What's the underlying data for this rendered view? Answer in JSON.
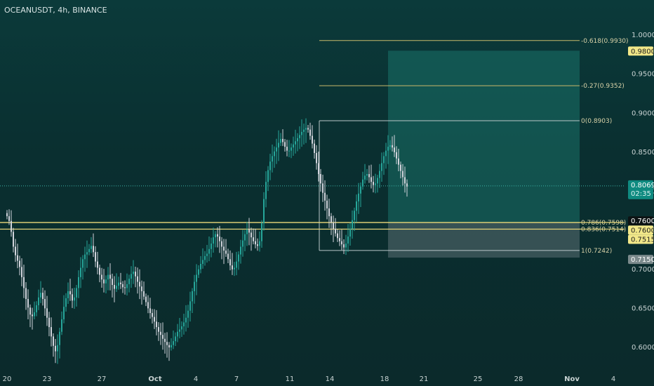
{
  "header": {
    "title": "OCEANUSDT, 4h, BINANCE"
  },
  "colors": {
    "bg_top": "#0b3a3a",
    "bull": "#26a69a",
    "bear": "#d1d4dc",
    "fib": "#c8b86a",
    "target_zone": "#1f8f82",
    "stop_zone": "#6d7f82"
  },
  "chart_data": {
    "type": "candlestick",
    "symbol": "OCEANUSDT",
    "interval": "4h",
    "exchange": "BINANCE",
    "x_tick_labels": [
      "20",
      "23",
      "27",
      "Oct",
      "4",
      "7",
      "11",
      "14",
      "18",
      "21",
      "25",
      "28",
      "Nov",
      "4"
    ],
    "y_tick_labels": [
      "1.0000",
      "0.9500",
      "0.9000",
      "0.8500",
      "0.8000",
      "0.7500",
      "0.7000",
      "0.6500",
      "0.6000"
    ],
    "ylim": [
      0.58,
      1.02
    ],
    "last_price": {
      "value": "0.8069",
      "countdown": "02:35"
    },
    "price_tags": [
      {
        "value": "0.9800",
        "style": "yellow"
      },
      {
        "value": "0.7600",
        "style": "dark"
      },
      {
        "value": "0.7600",
        "style": "yellow"
      },
      {
        "value": "0.7515",
        "style": "yellow"
      },
      {
        "value": "0.7150",
        "style": "gray"
      }
    ],
    "fib_levels": [
      {
        "label": "-0.618(0.9930)",
        "value": 0.993
      },
      {
        "label": "-0.27(0.9352)",
        "value": 0.9352
      },
      {
        "label": "0(0.8903)",
        "value": 0.8903
      },
      {
        "label": "0.786(0.7598)",
        "value": 0.7598
      },
      {
        "label": "0.836(0.7514)",
        "value": 0.7514
      },
      {
        "label": "1(0.7242)",
        "value": 0.7242
      }
    ],
    "horizontal_lines": [
      0.76,
      0.7515
    ],
    "position": {
      "entry": 0.76,
      "target": 0.98,
      "stop": 0.715
    },
    "series_close": [
      0.768,
      0.762,
      0.748,
      0.729,
      0.718,
      0.711,
      0.703,
      0.69,
      0.676,
      0.662,
      0.651,
      0.642,
      0.64,
      0.645,
      0.654,
      0.664,
      0.67,
      0.662,
      0.65,
      0.638,
      0.626,
      0.614,
      0.602,
      0.595,
      0.603,
      0.62,
      0.636,
      0.652,
      0.663,
      0.672,
      0.668,
      0.66,
      0.664,
      0.676,
      0.69,
      0.702,
      0.713,
      0.719,
      0.722,
      0.726,
      0.73,
      0.722,
      0.71,
      0.702,
      0.693,
      0.687,
      0.682,
      0.687,
      0.693,
      0.688,
      0.68,
      0.675,
      0.679,
      0.683,
      0.681,
      0.677,
      0.676,
      0.681,
      0.688,
      0.694,
      0.697,
      0.691,
      0.684,
      0.678,
      0.672,
      0.665,
      0.658,
      0.65,
      0.644,
      0.639,
      0.633,
      0.626,
      0.62,
      0.616,
      0.611,
      0.607,
      0.603,
      0.6,
      0.603,
      0.608,
      0.614,
      0.62,
      0.623,
      0.627,
      0.632,
      0.638,
      0.647,
      0.659,
      0.672,
      0.684,
      0.693,
      0.7,
      0.707,
      0.712,
      0.717,
      0.72,
      0.726,
      0.733,
      0.741,
      0.745,
      0.742,
      0.736,
      0.729,
      0.724,
      0.72,
      0.713,
      0.705,
      0.7,
      0.702,
      0.71,
      0.719,
      0.729,
      0.737,
      0.745,
      0.751,
      0.747,
      0.741,
      0.736,
      0.732,
      0.73,
      0.736,
      0.759,
      0.79,
      0.812,
      0.827,
      0.838,
      0.845,
      0.851,
      0.856,
      0.862,
      0.867,
      0.863,
      0.857,
      0.852,
      0.852,
      0.856,
      0.86,
      0.864,
      0.868,
      0.872,
      0.876,
      0.879,
      0.881,
      0.879,
      0.871,
      0.861,
      0.849,
      0.836,
      0.822,
      0.81,
      0.798,
      0.788,
      0.778,
      0.768,
      0.76,
      0.752,
      0.746,
      0.74,
      0.736,
      0.732,
      0.728,
      0.733,
      0.742,
      0.752,
      0.763,
      0.775,
      0.787,
      0.797,
      0.806,
      0.815,
      0.82,
      0.822,
      0.818,
      0.812,
      0.808,
      0.81,
      0.817,
      0.826,
      0.836,
      0.845,
      0.852,
      0.857,
      0.859,
      0.856,
      0.85,
      0.842,
      0.834,
      0.826,
      0.818,
      0.81,
      0.806
    ]
  }
}
